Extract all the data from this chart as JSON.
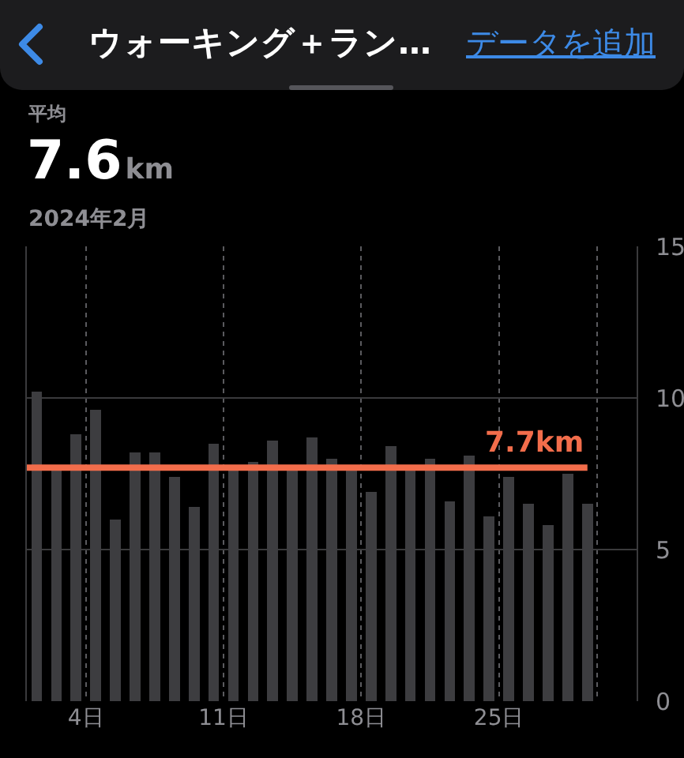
{
  "chart_data": {
    "type": "bar",
    "title": "ウォーキング＋ラン…",
    "subtitle": "2024年2月",
    "annotations": [
      "データを追加",
      "平均",
      "7.6",
      "km"
    ],
    "x": [
      "2024-02-01T12:00",
      "2024-02-02T12:00",
      "2024-02-03T12:00",
      "2024-02-04T12:00",
      "2024-02-05T12:00",
      "2024-02-06T12:00",
      "2024-02-07T12:00",
      "2024-02-08T12:00",
      "2024-02-09T12:00",
      "2024-02-10T12:00",
      "2024-02-11T12:00",
      "2024-02-12T12:00",
      "2024-02-13T12:00",
      "2024-02-14T12:00",
      "2024-02-15T12:00",
      "2024-02-16T12:00",
      "2024-02-17T12:00",
      "2024-02-18T12:00",
      "2024-02-19T12:00",
      "2024-02-20T12:00",
      "2024-02-21T12:00",
      "2024-02-22T12:00",
      "2024-02-23T12:00",
      "2024-02-24T12:00",
      "2024-02-25T12:00",
      "2024-02-26T12:00",
      "2024-02-27T12:00",
      "2024-02-28T12:00",
      "2024-02-29T12:00"
    ],
    "values": [
      10.2,
      7.7,
      8.8,
      9.6,
      6.0,
      8.2,
      8.2,
      7.4,
      6.4,
      8.5,
      7.7,
      7.9,
      8.6,
      7.7,
      8.7,
      8.0,
      7.7,
      6.9,
      8.4,
      7.7,
      8.0,
      6.6,
      8.1,
      6.1,
      7.4,
      6.5,
      5.8,
      7.5,
      6.5
    ],
    "color": "#3d3d40",
    "xlim": [
      "2024-02-01",
      "2024-03-03"
    ],
    "xticks": [
      {
        "value": "2024-02-04",
        "label": "4日"
      },
      {
        "value": "2024-02-11",
        "label": "11日"
      },
      {
        "value": "2024-02-18",
        "label": "18日"
      },
      {
        "value": "2024-02-25",
        "label": "25日"
      },
      {
        "value": "2024-03-01",
        "label": null
      }
    ],
    "ylim": [
      0,
      15
    ],
    "yticks": [
      0,
      5,
      10,
      15
    ],
    "grid": true,
    "ref_lines": [
      {
        "axis": "y",
        "value": 7.7,
        "label": "7.7km",
        "color": "#f26d4b"
      }
    ]
  }
}
